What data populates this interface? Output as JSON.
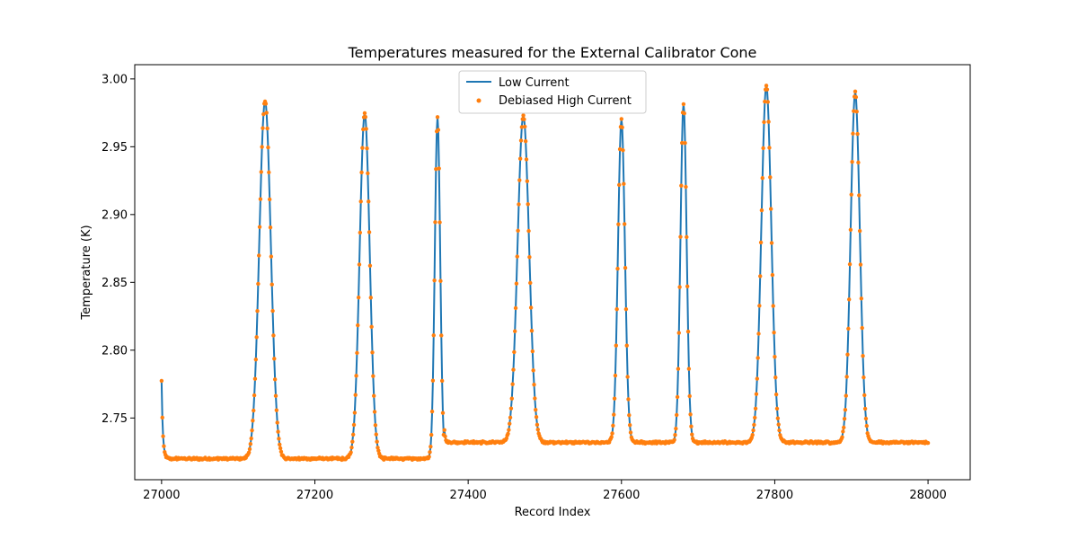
{
  "chart_data": {
    "type": "line",
    "title": "Temperatures measured for the External Calibrator Cone",
    "xlabel": "Record Index",
    "ylabel": "Temperature (K)",
    "xlim": [
      26965,
      28055
    ],
    "ylim": [
      2.7045,
      3.0105
    ],
    "xticks": [
      27000,
      27200,
      27400,
      27600,
      27800,
      28000
    ],
    "yticks": [
      2.75,
      2.8,
      2.85,
      2.9,
      2.95,
      3.0
    ],
    "ytick_labels": [
      "2.75",
      "2.80",
      "2.85",
      "2.90",
      "2.95",
      "3.00"
    ],
    "grid": false,
    "legend_position": "top-center",
    "x_range": [
      27000,
      28000
    ],
    "baselines": [
      {
        "from": 27000,
        "to": 27369,
        "value": 2.72
      },
      {
        "from": 27369,
        "to": 28000,
        "value": 2.732
      }
    ],
    "initial_value": 2.777,
    "peaks": [
      {
        "center": 27135,
        "value": 2.984,
        "width": 7.5
      },
      {
        "center": 27265,
        "value": 2.975,
        "width": 6.5
      },
      {
        "center": 27360,
        "value": 2.972,
        "width": 3.5
      },
      {
        "center": 27472,
        "value": 2.973,
        "width": 7.5
      },
      {
        "center": 27600,
        "value": 2.97,
        "width": 4.5
      },
      {
        "center": 27681,
        "value": 2.982,
        "width": 4.0
      },
      {
        "center": 27789,
        "value": 2.995,
        "width": 6.5
      },
      {
        "center": 27905,
        "value": 2.99,
        "width": 6.0
      }
    ],
    "series": [
      {
        "name": "Low Current",
        "style": "line",
        "color": "#1f77b4"
      },
      {
        "name": "Debiased High Current",
        "style": "scatter",
        "color": "#ff7f0e"
      }
    ]
  }
}
